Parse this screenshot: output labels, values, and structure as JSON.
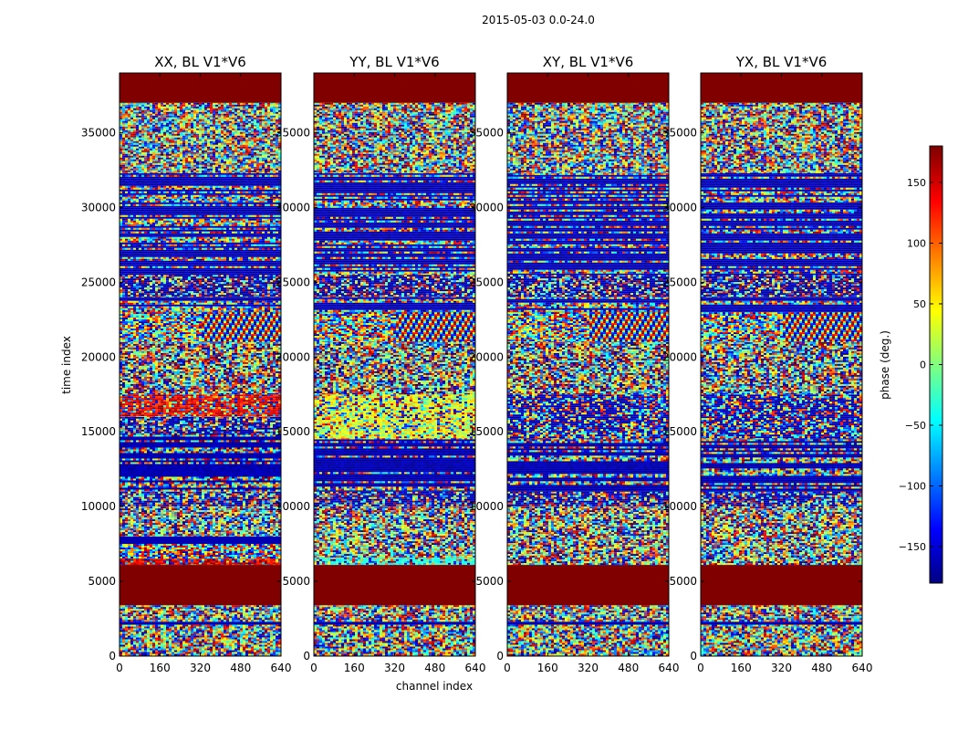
{
  "figure_title": "2015-05-03 0.0-24.0",
  "chart_data": {
    "type": "heatmap",
    "title": "2015-05-03 0.0-24.0",
    "xlabel": "channel index",
    "ylabel": "time index",
    "xlim": [
      0,
      640
    ],
    "ylim": [
      0,
      39000
    ],
    "x_ticks": [
      "0",
      "160",
      "320",
      "480",
      "640"
    ],
    "y_ticks": [
      "0",
      "5000",
      "10000",
      "15000",
      "20000",
      "25000",
      "30000",
      "35000"
    ],
    "colorbar": {
      "label": "phase (deg.)",
      "vmin": -180,
      "vmax": 180,
      "ticks": [
        "150",
        "100",
        "50",
        "0",
        "−50",
        "−100",
        "−150"
      ],
      "tick_values": [
        150,
        100,
        50,
        0,
        -50,
        -100,
        -150
      ],
      "colormap": "jet"
    },
    "panels": [
      {
        "title": "XX, BL V1*V6",
        "bands": [
          {
            "y0": 0,
            "y1": 2100,
            "kind": "noise"
          },
          {
            "y0": 2100,
            "y1": 2300,
            "kind": "line"
          },
          {
            "y0": 2300,
            "y1": 3400,
            "kind": "noise"
          },
          {
            "y0": 3400,
            "y1": 6100,
            "kind": "flagged"
          },
          {
            "y0": 6100,
            "y1": 6500,
            "kind": "red"
          },
          {
            "y0": 6500,
            "y1": 7500,
            "kind": "noise"
          },
          {
            "y0": 7500,
            "y1": 8000,
            "kind": "line"
          },
          {
            "y0": 8000,
            "y1": 10000,
            "kind": "noise"
          },
          {
            "y0": 10000,
            "y1": 11000,
            "kind": "mixed"
          },
          {
            "y0": 11000,
            "y1": 14800,
            "kind": "striped"
          },
          {
            "y0": 14800,
            "y1": 16000,
            "kind": "mixed"
          },
          {
            "y0": 16000,
            "y1": 17500,
            "kind": "red"
          },
          {
            "y0": 17500,
            "y1": 21000,
            "kind": "noise"
          },
          {
            "y0": 21000,
            "y1": 23000,
            "kind": "fringe"
          },
          {
            "y0": 23000,
            "y1": 24000,
            "kind": "striped"
          },
          {
            "y0": 24000,
            "y1": 25500,
            "kind": "mixed"
          },
          {
            "y0": 25500,
            "y1": 32300,
            "kind": "striped"
          },
          {
            "y0": 32300,
            "y1": 37000,
            "kind": "noise"
          },
          {
            "y0": 37000,
            "y1": 39000,
            "kind": "flagged"
          }
        ]
      },
      {
        "title": "YY, BL V1*V6",
        "bands": [
          {
            "y0": 0,
            "y1": 2100,
            "kind": "noise"
          },
          {
            "y0": 2100,
            "y1": 2300,
            "kind": "line"
          },
          {
            "y0": 2300,
            "y1": 3400,
            "kind": "noise"
          },
          {
            "y0": 3400,
            "y1": 6100,
            "kind": "flagged"
          },
          {
            "y0": 6100,
            "y1": 6600,
            "kind": "cyan"
          },
          {
            "y0": 6600,
            "y1": 10000,
            "kind": "noise"
          },
          {
            "y0": 10000,
            "y1": 11000,
            "kind": "mixed"
          },
          {
            "y0": 11000,
            "y1": 14500,
            "kind": "striped"
          },
          {
            "y0": 14500,
            "y1": 17500,
            "kind": "yellow"
          },
          {
            "y0": 17500,
            "y1": 21000,
            "kind": "noise"
          },
          {
            "y0": 21000,
            "y1": 23000,
            "kind": "fringe"
          },
          {
            "y0": 23000,
            "y1": 24000,
            "kind": "striped"
          },
          {
            "y0": 24000,
            "y1": 25500,
            "kind": "mixed"
          },
          {
            "y0": 25500,
            "y1": 32300,
            "kind": "striped"
          },
          {
            "y0": 32300,
            "y1": 37000,
            "kind": "noise"
          },
          {
            "y0": 37000,
            "y1": 39000,
            "kind": "flagged"
          }
        ]
      },
      {
        "title": "XY, BL V1*V6",
        "bands": [
          {
            "y0": 0,
            "y1": 2100,
            "kind": "noise"
          },
          {
            "y0": 2100,
            "y1": 2300,
            "kind": "line"
          },
          {
            "y0": 2300,
            "y1": 3400,
            "kind": "noise"
          },
          {
            "y0": 3400,
            "y1": 6100,
            "kind": "flagged"
          },
          {
            "y0": 6100,
            "y1": 10000,
            "kind": "noise"
          },
          {
            "y0": 10000,
            "y1": 11000,
            "kind": "mixed"
          },
          {
            "y0": 11000,
            "y1": 14500,
            "kind": "striped"
          },
          {
            "y0": 14500,
            "y1": 17500,
            "kind": "mixed"
          },
          {
            "y0": 17500,
            "y1": 21000,
            "kind": "noise"
          },
          {
            "y0": 21000,
            "y1": 23000,
            "kind": "fringe"
          },
          {
            "y0": 23000,
            "y1": 24000,
            "kind": "striped"
          },
          {
            "y0": 24000,
            "y1": 25500,
            "kind": "mixed"
          },
          {
            "y0": 25500,
            "y1": 32300,
            "kind": "striped"
          },
          {
            "y0": 32300,
            "y1": 37000,
            "kind": "noise"
          },
          {
            "y0": 37000,
            "y1": 39000,
            "kind": "flagged"
          }
        ]
      },
      {
        "title": "YX, BL V1*V6",
        "bands": [
          {
            "y0": 0,
            "y1": 2100,
            "kind": "noise"
          },
          {
            "y0": 2100,
            "y1": 2300,
            "kind": "line"
          },
          {
            "y0": 2300,
            "y1": 3400,
            "kind": "noise"
          },
          {
            "y0": 3400,
            "y1": 6100,
            "kind": "flagged"
          },
          {
            "y0": 6100,
            "y1": 10000,
            "kind": "noise"
          },
          {
            "y0": 10000,
            "y1": 11000,
            "kind": "mixed"
          },
          {
            "y0": 11000,
            "y1": 14500,
            "kind": "striped"
          },
          {
            "y0": 14500,
            "y1": 17500,
            "kind": "mixed"
          },
          {
            "y0": 17500,
            "y1": 21000,
            "kind": "noise"
          },
          {
            "y0": 21000,
            "y1": 23000,
            "kind": "fringe"
          },
          {
            "y0": 23000,
            "y1": 24000,
            "kind": "striped"
          },
          {
            "y0": 24000,
            "y1": 25500,
            "kind": "mixed"
          },
          {
            "y0": 25500,
            "y1": 32300,
            "kind": "striped"
          },
          {
            "y0": 32300,
            "y1": 37000,
            "kind": "noise"
          },
          {
            "y0": 37000,
            "y1": 39000,
            "kind": "flagged"
          }
        ]
      }
    ]
  }
}
